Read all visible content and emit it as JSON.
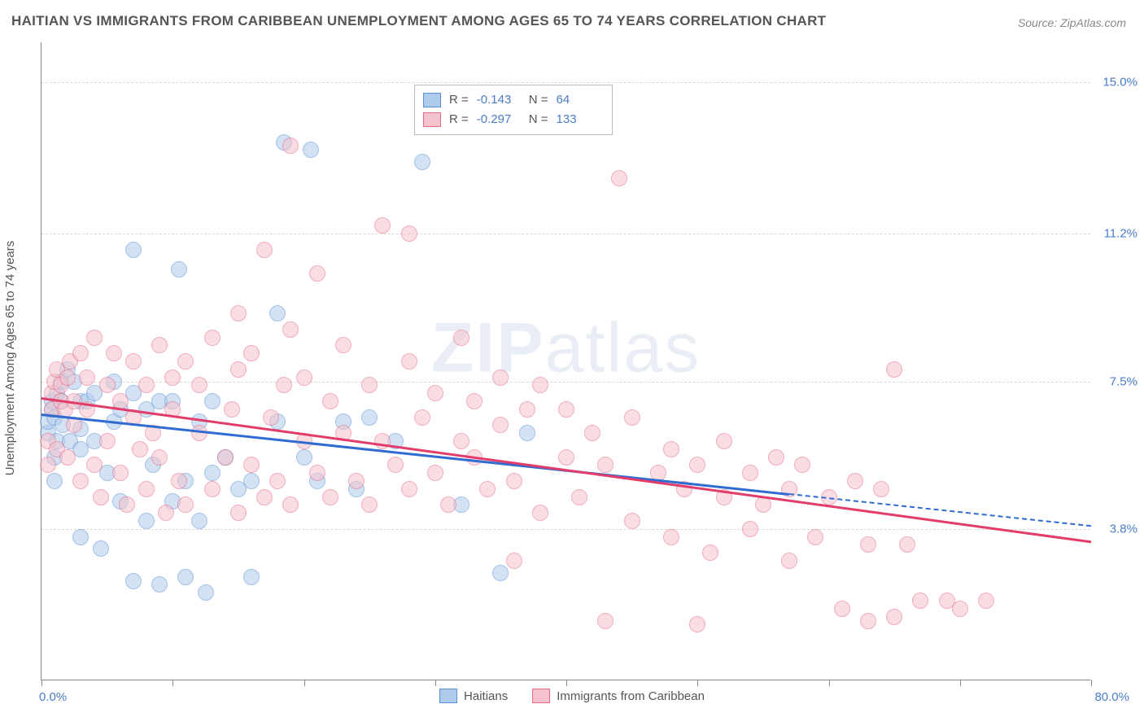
{
  "title": "HAITIAN VS IMMIGRANTS FROM CARIBBEAN UNEMPLOYMENT AMONG AGES 65 TO 74 YEARS CORRELATION CHART",
  "source": "Source: ZipAtlas.com",
  "ylabel": "Unemployment Among Ages 65 to 74 years",
  "watermark_a": "ZIP",
  "watermark_b": "atlas",
  "chart": {
    "type": "scatter",
    "xlim": [
      0,
      80
    ],
    "ylim": [
      0,
      16
    ],
    "x_min_label": "0.0%",
    "x_max_label": "80.0%",
    "y_ticks": [
      3.8,
      7.5,
      11.2,
      15.0
    ],
    "y_tick_labels": [
      "3.8%",
      "7.5%",
      "11.2%",
      "15.0%"
    ],
    "x_tick_positions": [
      0,
      10,
      20,
      30,
      40,
      50,
      60,
      70,
      80
    ],
    "background_color": "#ffffff",
    "grid_color": "#d9d9d9",
    "axis_color": "#888888",
    "tick_label_color": "#4b7cc9",
    "marker_radius": 10,
    "marker_opacity": 0.55,
    "series": [
      {
        "name": "Haitians",
        "fill": "#aecbeb",
        "stroke": "#5a8fd6",
        "legend_R_label": "R =",
        "legend_R_value": "-0.143",
        "legend_N_label": "N =",
        "legend_N_value": "64",
        "trend": {
          "x1": 0,
          "y1": 6.7,
          "x2": 57,
          "y2": 4.7,
          "x2_dash": 80,
          "y2_dash": 3.9,
          "color": "#2f6bd0"
        },
        "points": [
          [
            0.5,
            6.2
          ],
          [
            0.5,
            6.5
          ],
          [
            0.8,
            6.8
          ],
          [
            0.8,
            7.0
          ],
          [
            1.0,
            5.0
          ],
          [
            1.0,
            5.6
          ],
          [
            1.0,
            6.6
          ],
          [
            1.2,
            6.0
          ],
          [
            1.2,
            7.2
          ],
          [
            1.5,
            7.0
          ],
          [
            1.5,
            7.5
          ],
          [
            1.6,
            6.4
          ],
          [
            2.0,
            7.8
          ],
          [
            2.2,
            6.0
          ],
          [
            2.5,
            7.5
          ],
          [
            3.0,
            3.6
          ],
          [
            3.0,
            5.8
          ],
          [
            3.0,
            6.3
          ],
          [
            3.0,
            7.0
          ],
          [
            3.5,
            7.0
          ],
          [
            4.0,
            6.0
          ],
          [
            4.0,
            7.2
          ],
          [
            4.5,
            3.3
          ],
          [
            5.0,
            5.2
          ],
          [
            5.5,
            6.5
          ],
          [
            5.5,
            7.5
          ],
          [
            6.0,
            4.5
          ],
          [
            6.0,
            6.8
          ],
          [
            7.0,
            2.5
          ],
          [
            7.0,
            7.2
          ],
          [
            7.0,
            10.8
          ],
          [
            8.0,
            4.0
          ],
          [
            8.0,
            6.8
          ],
          [
            8.5,
            5.4
          ],
          [
            9.0,
            2.4
          ],
          [
            9.0,
            7.0
          ],
          [
            10.0,
            4.5
          ],
          [
            10.0,
            7.0
          ],
          [
            10.5,
            10.3
          ],
          [
            11.0,
            2.6
          ],
          [
            11.0,
            5.0
          ],
          [
            12.0,
            4.0
          ],
          [
            12.0,
            6.5
          ],
          [
            12.5,
            2.2
          ],
          [
            13.0,
            5.2
          ],
          [
            13.0,
            7.0
          ],
          [
            14.0,
            5.6
          ],
          [
            15.0,
            4.8
          ],
          [
            16.0,
            2.6
          ],
          [
            16.0,
            5.0
          ],
          [
            18.0,
            6.5
          ],
          [
            18.0,
            9.2
          ],
          [
            18.5,
            13.5
          ],
          [
            20.0,
            5.6
          ],
          [
            20.5,
            13.3
          ],
          [
            21.0,
            5.0
          ],
          [
            23.0,
            6.5
          ],
          [
            24.0,
            4.8
          ],
          [
            25.0,
            6.6
          ],
          [
            27.0,
            6.0
          ],
          [
            29.0,
            13.0
          ],
          [
            32.0,
            4.4
          ],
          [
            35.0,
            2.7
          ],
          [
            37.0,
            6.2
          ]
        ]
      },
      {
        "name": "Immigrants from Caribbean",
        "fill": "#f5c3cd",
        "stroke": "#e66a86",
        "legend_R_label": "R =",
        "legend_R_value": "-0.297",
        "legend_N_label": "N =",
        "legend_N_value": "133",
        "trend": {
          "x1": 0,
          "y1": 7.1,
          "x2": 80,
          "y2": 3.5,
          "color": "#e23d6a"
        },
        "points": [
          [
            0.5,
            5.4
          ],
          [
            0.5,
            6.0
          ],
          [
            0.8,
            6.8
          ],
          [
            0.8,
            7.2
          ],
          [
            1.0,
            7.5
          ],
          [
            1.2,
            5.8
          ],
          [
            1.2,
            7.8
          ],
          [
            1.5,
            7.0
          ],
          [
            1.5,
            7.4
          ],
          [
            1.8,
            6.8
          ],
          [
            2.0,
            5.6
          ],
          [
            2.0,
            7.6
          ],
          [
            2.2,
            8.0
          ],
          [
            2.5,
            6.4
          ],
          [
            2.5,
            7.0
          ],
          [
            3.0,
            5.0
          ],
          [
            3.0,
            8.2
          ],
          [
            3.5,
            6.8
          ],
          [
            3.5,
            7.6
          ],
          [
            4.0,
            5.4
          ],
          [
            4.0,
            8.6
          ],
          [
            4.5,
            4.6
          ],
          [
            5.0,
            6.0
          ],
          [
            5.0,
            7.4
          ],
          [
            5.5,
            8.2
          ],
          [
            6.0,
            5.2
          ],
          [
            6.0,
            7.0
          ],
          [
            6.5,
            4.4
          ],
          [
            7.0,
            6.6
          ],
          [
            7.0,
            8.0
          ],
          [
            7.5,
            5.8
          ],
          [
            8.0,
            4.8
          ],
          [
            8.0,
            7.4
          ],
          [
            8.5,
            6.2
          ],
          [
            9.0,
            5.6
          ],
          [
            9.0,
            8.4
          ],
          [
            9.5,
            4.2
          ],
          [
            10.0,
            6.8
          ],
          [
            10.0,
            7.6
          ],
          [
            10.5,
            5.0
          ],
          [
            11.0,
            4.4
          ],
          [
            11.0,
            8.0
          ],
          [
            12.0,
            6.2
          ],
          [
            12.0,
            7.4
          ],
          [
            13.0,
            4.8
          ],
          [
            13.0,
            8.6
          ],
          [
            14.0,
            5.6
          ],
          [
            14.5,
            6.8
          ],
          [
            15.0,
            4.2
          ],
          [
            15.0,
            7.8
          ],
          [
            15.0,
            9.2
          ],
          [
            16.0,
            5.4
          ],
          [
            16.0,
            8.2
          ],
          [
            17.0,
            4.6
          ],
          [
            17.0,
            10.8
          ],
          [
            17.5,
            6.6
          ],
          [
            18.0,
            5.0
          ],
          [
            18.5,
            7.4
          ],
          [
            19.0,
            4.4
          ],
          [
            19.0,
            8.8
          ],
          [
            19.0,
            13.4
          ],
          [
            20.0,
            6.0
          ],
          [
            20.0,
            7.6
          ],
          [
            21.0,
            5.2
          ],
          [
            21.0,
            10.2
          ],
          [
            22.0,
            4.6
          ],
          [
            22.0,
            7.0
          ],
          [
            23.0,
            6.2
          ],
          [
            23.0,
            8.4
          ],
          [
            24.0,
            5.0
          ],
          [
            25.0,
            4.4
          ],
          [
            25.0,
            7.4
          ],
          [
            26.0,
            6.0
          ],
          [
            26.0,
            11.4
          ],
          [
            27.0,
            5.4
          ],
          [
            28.0,
            4.8
          ],
          [
            28.0,
            8.0
          ],
          [
            28.0,
            11.2
          ],
          [
            29.0,
            6.6
          ],
          [
            30.0,
            5.2
          ],
          [
            30.0,
            7.2
          ],
          [
            31.0,
            4.4
          ],
          [
            32.0,
            6.0
          ],
          [
            32.0,
            8.6
          ],
          [
            33.0,
            5.6
          ],
          [
            33.0,
            7.0
          ],
          [
            34.0,
            4.8
          ],
          [
            35.0,
            6.4
          ],
          [
            35.0,
            7.6
          ],
          [
            36.0,
            3.0
          ],
          [
            36.0,
            5.0
          ],
          [
            37.0,
            6.8
          ],
          [
            38.0,
            4.2
          ],
          [
            38.0,
            7.4
          ],
          [
            40.0,
            5.6
          ],
          [
            40.0,
            6.8
          ],
          [
            41.0,
            4.6
          ],
          [
            42.0,
            6.2
          ],
          [
            43.0,
            1.5
          ],
          [
            43.0,
            5.4
          ],
          [
            44.0,
            12.6
          ],
          [
            45.0,
            4.0
          ],
          [
            45.0,
            6.6
          ],
          [
            47.0,
            5.2
          ],
          [
            48.0,
            3.6
          ],
          [
            48.0,
            5.8
          ],
          [
            49.0,
            4.8
          ],
          [
            50.0,
            1.4
          ],
          [
            50.0,
            5.4
          ],
          [
            51.0,
            3.2
          ],
          [
            52.0,
            4.6
          ],
          [
            52.0,
            6.0
          ],
          [
            54.0,
            3.8
          ],
          [
            54.0,
            5.2
          ],
          [
            55.0,
            4.4
          ],
          [
            56.0,
            5.6
          ],
          [
            57.0,
            3.0
          ],
          [
            57.0,
            4.8
          ],
          [
            58.0,
            5.4
          ],
          [
            59.0,
            3.6
          ],
          [
            60.0,
            4.6
          ],
          [
            61.0,
            1.8
          ],
          [
            62.0,
            5.0
          ],
          [
            63.0,
            1.5
          ],
          [
            63.0,
            3.4
          ],
          [
            64.0,
            4.8
          ],
          [
            65.0,
            1.6
          ],
          [
            65.0,
            7.8
          ],
          [
            66.0,
            3.4
          ],
          [
            67.0,
            2.0
          ],
          [
            69.0,
            2.0
          ],
          [
            70.0,
            1.8
          ],
          [
            72.0,
            2.0
          ]
        ]
      }
    ]
  }
}
